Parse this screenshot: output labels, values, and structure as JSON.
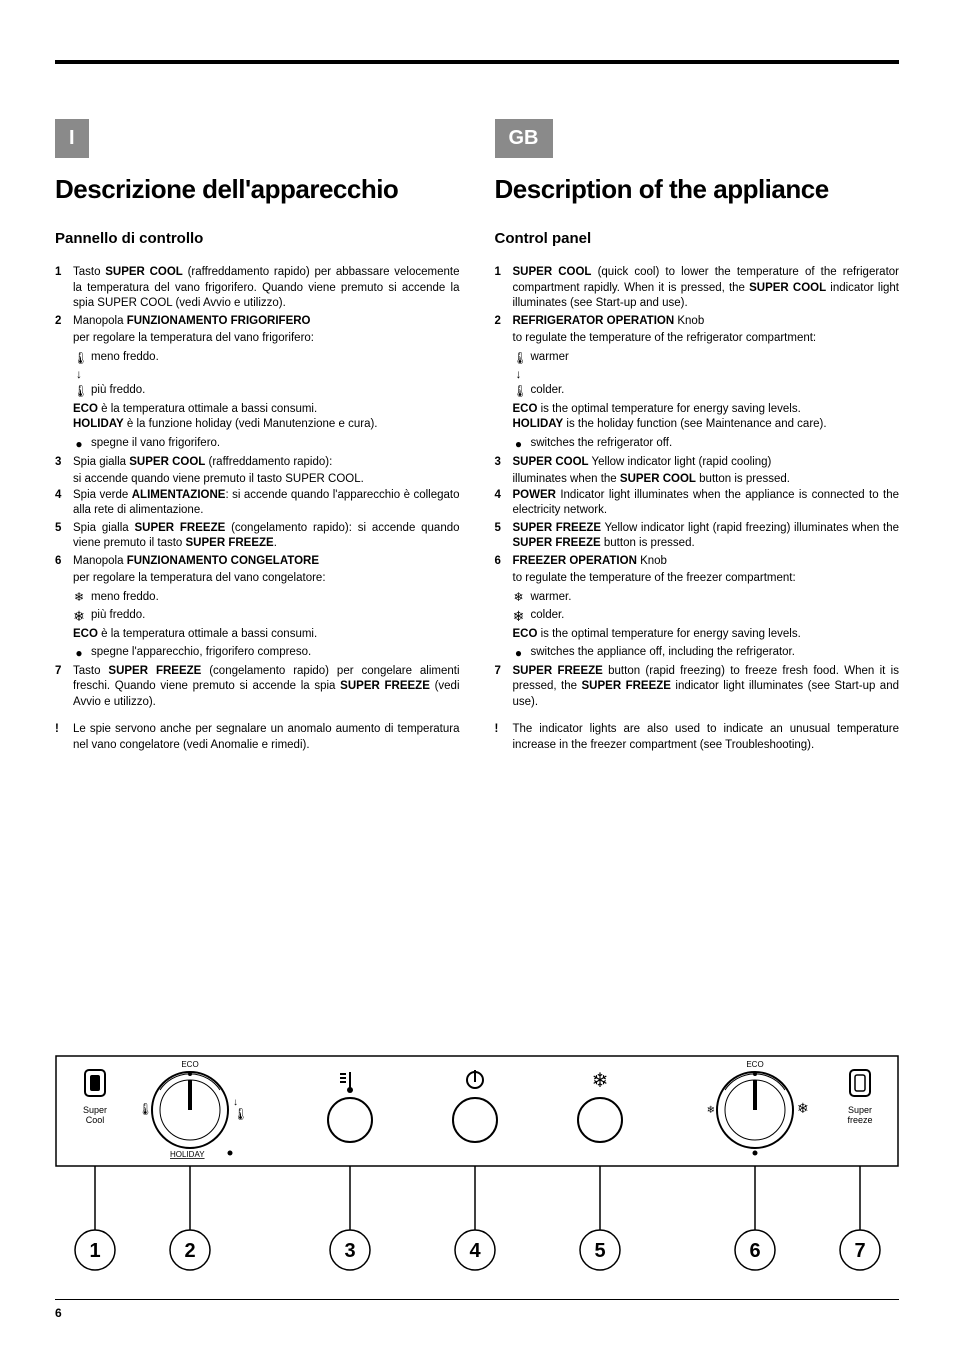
{
  "page_number": "6",
  "left": {
    "lang_badge": "I",
    "title": "Descrizione dell'apparecchio",
    "subtitle": "Pannello di controllo",
    "items": [
      {
        "n": "1",
        "body": "Tasto <b>SUPER COOL</b> (raffreddamento rapido) per abbassare velocemente la temperatura del vano frigorifero. Quando viene premuto si accende la spia SUPER COOL (vedi Avvio e utilizzo)."
      },
      {
        "n": "2",
        "body": "Manopola <b>FUNZIONAMENTO FRIGORIFERO</b>"
      }
    ],
    "item2_lines": [
      "per regolare la temperatura del vano frigorifero:"
    ],
    "item2_icons": [
      {
        "icon": "therm-short",
        "text": "meno freddo."
      },
      {
        "icon": "arrow-down",
        "text": ""
      },
      {
        "icon": "therm-long",
        "text": "più freddo."
      }
    ],
    "item2_tail": [
      "<b>ECO</b> è la temperatura ottimale a bassi consumi.",
      "<b>HOLIDAY</b> è la funzione holiday (vedi Manutenzione e cura)."
    ],
    "item2_dot": "spegne il vano frigorifero.",
    "items_rest": [
      {
        "n": "3",
        "body": "Spia gialla <b>SUPER COOL</b> (raffreddamento rapido):",
        "tail": "si accende quando viene premuto il tasto SUPER COOL."
      },
      {
        "n": "4",
        "body": "Spia verde <b>ALIMENTAZIONE</b>: si accende quando l'apparecchio è collegato alla rete di alimentazione."
      },
      {
        "n": "5",
        "body": "Spia gialla <b>SUPER FREEZE</b> (congelamento rapido): si accende quando viene premuto il tasto <b>SUPER FREEZE</b>."
      },
      {
        "n": "6",
        "body": "Manopola <b>FUNZIONAMENTO CONGELATORE</b>"
      }
    ],
    "item6_lines": [
      "per regolare la temperatura del vano congelatore:"
    ],
    "item6_icons": [
      {
        "icon": "snow-small",
        "text": "meno freddo."
      },
      {
        "icon": "snow-big",
        "text": "più freddo."
      }
    ],
    "item6_tail": [
      "<b>ECO</b> è la temperatura ottimale a bassi consumi."
    ],
    "item6_dot": "spegne l'apparecchio, frigorifero compreso.",
    "item7": {
      "n": "7",
      "body": "Tasto <b>SUPER FREEZE</b> (congelamento rapido) per congelare alimenti freschi. Quando viene premuto si accende la spia <b>SUPER FREEZE</b> (vedi Avvio e utilizzo)."
    },
    "note": "Le spie servono anche per segnalare un anomalo aumento di temperatura nel vano congelatore (vedi Anomalie e rimedi)."
  },
  "right": {
    "lang_badge": "GB",
    "title": "Description of the appliance",
    "subtitle": "Control panel",
    "items": [
      {
        "n": "1",
        "body": "<b>SUPER COOL</b> (quick cool) to lower the temperature of the refrigerator compartment rapidly. When it is pressed, the <b>SUPER COOL</b> indicator light illuminates (see Start-up and use)."
      },
      {
        "n": "2",
        "body": "<b>REFRIGERATOR OPERATION</b> Knob"
      }
    ],
    "item2_lines": [
      "to regulate the temperature of the refrigerator compartment:"
    ],
    "item2_icons": [
      {
        "icon": "therm-short",
        "text": "warmer"
      },
      {
        "icon": "arrow-down",
        "text": ""
      },
      {
        "icon": "therm-long",
        "text": "colder."
      }
    ],
    "item2_tail": [
      "<b>ECO</b> is the optimal temperature for energy saving levels.",
      "<b>HOLIDAY</b> is the holiday function (see Maintenance and care)."
    ],
    "item2_dot": "switches the refrigerator off.",
    "items_rest": [
      {
        "n": "3",
        "body": "<b>SUPER COOL</b> Yellow indicator light (rapid cooling)",
        "tail": "illuminates when the <b>SUPER COOL</b> button is pressed."
      },
      {
        "n": "4",
        "body": "<b>POWER</b> Indicator light illuminates when the appliance is connected to the electricity network."
      },
      {
        "n": "5",
        "body": "<b>SUPER FREEZE</b> Yellow indicator light (rapid freezing) illuminates when the <b>SUPER FREEZE</b> button is pressed."
      },
      {
        "n": "6",
        "body": "<b>FREEZER OPERATION</b> Knob"
      }
    ],
    "item6_lines": [
      "to regulate the temperature of the freezer compartment:"
    ],
    "item6_icons": [
      {
        "icon": "snow-small",
        "text": "warmer."
      },
      {
        "icon": "snow-big",
        "text": "colder."
      }
    ],
    "item6_tail": [
      "<b>ECO</b> is the optimal temperature for energy saving levels."
    ],
    "item6_dot": "switches the appliance off, including the refrigerator.",
    "item7": {
      "n": "7",
      "body": "<b>SUPER FREEZE</b> button (rapid freezing) to freeze fresh food. When it is pressed, the <b>SUPER FREEZE</b> indicator light illuminates (see Start-up and use)."
    },
    "note": "The indicator lights are also used to indicate an unusual temperature increase in the freezer compartment (see Troubleshooting)."
  },
  "panel": {
    "labels": {
      "super_cool": "Super\nCool",
      "super_freeze": "Super\nfreeze",
      "eco": "ECO",
      "holiday": "HOLIDAY"
    },
    "callouts": [
      "1",
      "2",
      "3",
      "4",
      "5",
      "6",
      "7"
    ]
  }
}
